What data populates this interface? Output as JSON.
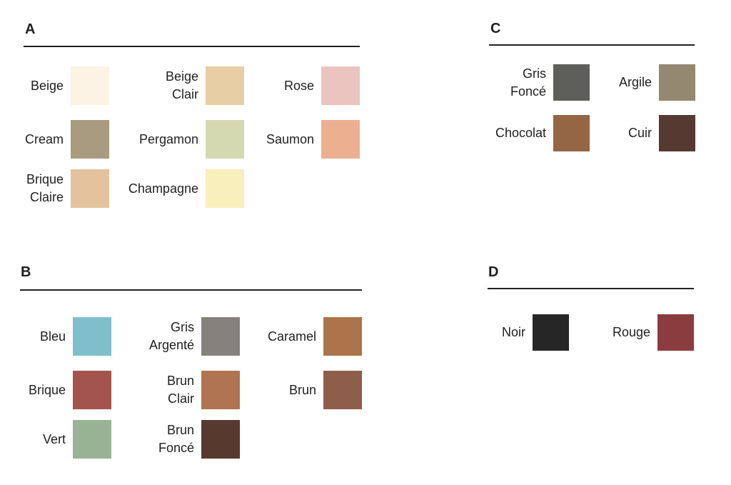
{
  "groups": [
    {
      "title": "A",
      "items": [
        {
          "label": "Beige",
          "color": "#FCF3E4"
        },
        {
          "label": "Beige\nClair",
          "color": "#E8CEA4"
        },
        {
          "label": "Rose",
          "color": "#EBC3BF"
        },
        {
          "label": "Cream",
          "color": "#A89B7F"
        },
        {
          "label": "Pergamon",
          "color": "#D5D9B2"
        },
        {
          "label": "Saumon",
          "color": "#EAB090"
        },
        {
          "label": "Brique\nClaire",
          "color": "#E4C29D"
        },
        {
          "label": "Champagne",
          "color": "#F9EFBC"
        }
      ]
    },
    {
      "title": "B",
      "items": [
        {
          "label": "Bleu",
          "color": "#7FBFCC"
        },
        {
          "label": "Gris\nArgenté",
          "color": "#85827C"
        },
        {
          "label": "Caramel",
          "color": "#AC744A"
        },
        {
          "label": "Brique",
          "color": "#A4544E"
        },
        {
          "label": "Brun\nClair",
          "color": "#B17451"
        },
        {
          "label": "Brun",
          "color": "#8E5E4B"
        },
        {
          "label": "Vert",
          "color": "#97B393"
        },
        {
          "label": "Brun\nFoncé",
          "color": "#573A2D"
        }
      ]
    },
    {
      "title": "C",
      "items": [
        {
          "label": "Gris\nFoncé",
          "color": "#5E5E5A"
        },
        {
          "label": "Argile",
          "color": "#958870"
        },
        {
          "label": "Chocolat",
          "color": "#946643"
        },
        {
          "label": "Cuir",
          "color": "#563930"
        }
      ]
    },
    {
      "title": "D",
      "items": [
        {
          "label": "Noir",
          "color": "#262626"
        },
        {
          "label": "Rouge",
          "color": "#8B3C3E"
        }
      ]
    }
  ]
}
